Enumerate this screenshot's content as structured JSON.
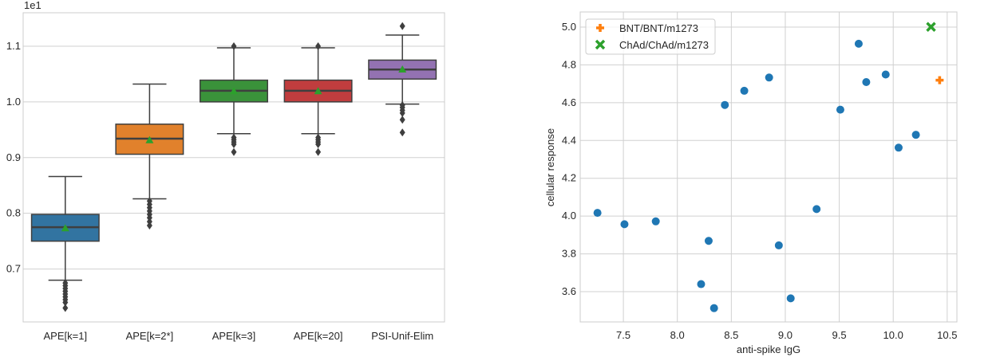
{
  "chart_data": [
    {
      "type": "box",
      "offset_label": "1e1",
      "xlabel": "",
      "ylabel": "",
      "ylim": [
        0.605,
        1.16
      ],
      "yticks": [
        0.7,
        0.8,
        0.9,
        1.0,
        1.1
      ],
      "ytick_labels": [
        "0.7",
        "0.8",
        "0.9",
        "1.0",
        "1.1"
      ],
      "grid": true,
      "mean_marker_color": "#2ca02c",
      "categories": [
        "APE[k=1]",
        "APE[k=2*]",
        "APE[k=3]",
        "APE[k=20]",
        "PSI-Unif-Elim"
      ],
      "boxes": [
        {
          "color": "#3274a1",
          "q1": 0.75,
          "median": 0.775,
          "q3": 0.798,
          "mean": 0.772,
          "whisker_low": 0.68,
          "whisker_high": 0.866,
          "outliers": [
            0.63,
            0.64,
            0.645,
            0.65,
            0.655,
            0.66,
            0.665,
            0.67,
            0.675
          ]
        },
        {
          "color": "#e1812c",
          "q1": 0.906,
          "median": 0.934,
          "q3": 0.96,
          "mean": 0.93,
          "whisker_low": 0.826,
          "whisker_high": 1.032,
          "outliers": [
            0.778,
            0.785,
            0.792,
            0.798,
            0.804,
            0.81,
            0.816,
            0.822
          ]
        },
        {
          "color": "#3a923a",
          "q1": 1.0,
          "median": 1.02,
          "q3": 1.039,
          "mean": 1.018,
          "whisker_low": 0.943,
          "whisker_high": 1.097,
          "outliers": [
            0.91,
            0.924,
            0.928,
            0.932,
            0.936,
            1.1
          ]
        },
        {
          "color": "#c03d3e",
          "q1": 1.0,
          "median": 1.02,
          "q3": 1.039,
          "mean": 1.018,
          "whisker_low": 0.943,
          "whisker_high": 1.097,
          "outliers": [
            0.91,
            0.924,
            0.928,
            0.932,
            0.936,
            1.1
          ]
        },
        {
          "color": "#9372b2",
          "q1": 1.041,
          "median": 1.058,
          "q3": 1.075,
          "mean": 1.057,
          "whisker_low": 0.996,
          "whisker_high": 1.12,
          "outliers": [
            0.945,
            0.968,
            0.98,
            0.985,
            0.99,
            0.994,
            1.136
          ]
        }
      ]
    },
    {
      "type": "scatter",
      "xlabel": "anti-spike IgG",
      "ylabel": "cellular response",
      "xlim": [
        7.1,
        10.59
      ],
      "ylim": [
        3.44,
        5.08
      ],
      "xticks": [
        7.5,
        8.0,
        8.5,
        9.0,
        9.5,
        10.0,
        10.5
      ],
      "xtick_labels": [
        "7.5",
        "8.0",
        "8.5",
        "9.0",
        "9.5",
        "10.0",
        "10.5"
      ],
      "yticks": [
        3.6,
        3.8,
        4.0,
        4.2,
        4.4,
        4.6,
        4.8,
        5.0
      ],
      "ytick_labels": [
        "3.6",
        "3.8",
        "4.0",
        "4.2",
        "4.4",
        "4.6",
        "4.8",
        "5.0"
      ],
      "grid": true,
      "legend_placement": "top-left",
      "series": [
        {
          "color": "#1f77b4",
          "marker": "circle",
          "x": [
            7.26,
            7.51,
            7.8,
            8.22,
            8.29,
            8.34,
            8.44,
            8.62,
            8.85,
            8.94,
            9.05,
            9.29,
            9.51,
            9.68,
            9.75,
            9.93,
            10.05,
            10.21
          ],
          "y": [
            4.017,
            3.957,
            3.972,
            3.64,
            3.869,
            3.513,
            4.588,
            4.663,
            4.733,
            3.845,
            3.565,
            4.037,
            4.563,
            4.912,
            4.709,
            4.749,
            4.362,
            4.43
          ]
        },
        {
          "name": "BNT/BNT/m1273",
          "color": "#ff7f0e",
          "marker": "plus",
          "x": [
            10.43
          ],
          "y": [
            4.719
          ]
        },
        {
          "name": "ChAd/ChAd/m1273",
          "color": "#2ca02c",
          "marker": "x",
          "x": [
            10.35
          ],
          "y": [
            5.001
          ]
        }
      ]
    }
  ]
}
